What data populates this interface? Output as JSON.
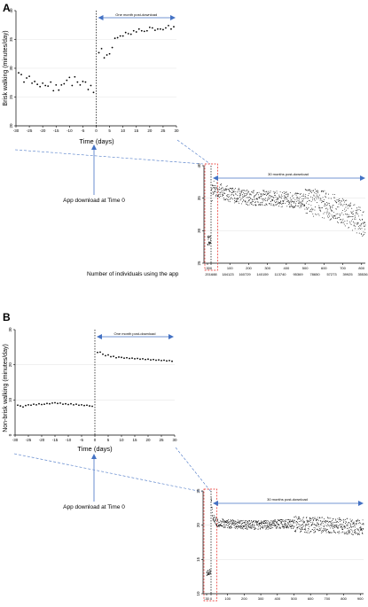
{
  "panels": {
    "A": {
      "letter": "A",
      "ylabel": "Brisk walking (minutes/day)",
      "xlabel": "Time (days)",
      "download_label": "App download at Time 0",
      "users_label": "Number of individuals using the app",
      "small_post_label": "One month post-download",
      "big_post_label": "30 months post-download",
      "counts": [
        "201688",
        "184123",
        "160729",
        "140159",
        "113740",
        "95369",
        "78650",
        "57273",
        "39925",
        "35536"
      ]
    },
    "B": {
      "letter": "B",
      "ylabel": "Non-brisk walking (minutes/day)",
      "xlabel": "Time (days)",
      "download_label": "App download at Time 0",
      "small_post_label": "One month post-download",
      "big_post_label": "30 months post-download"
    }
  },
  "colors": {
    "arrow": "#4472c4",
    "dash": "#4472c4",
    "zoom_box": "#e8231e",
    "points": "#000000",
    "grid": "#e6e6e6"
  },
  "chart_data": [
    {
      "id": "A-small",
      "type": "scatter",
      "xlabel": "Time (days)",
      "ylabel": "Brisk walking (minutes/day)",
      "xlim": [
        -30,
        30
      ],
      "ylim": [
        20,
        40
      ],
      "xticks": [
        -30,
        -25,
        -20,
        -15,
        -10,
        -5,
        0,
        5,
        10,
        15,
        20,
        25,
        30
      ],
      "yticks": [
        20,
        25,
        30,
        35,
        40
      ],
      "annotation": "One month post-download",
      "points": [
        [
          -29,
          29.2
        ],
        [
          -28,
          28.9
        ],
        [
          -27,
          27.6
        ],
        [
          -26,
          28.3
        ],
        [
          -25,
          28.6
        ],
        [
          -24,
          27.4
        ],
        [
          -23,
          27.7
        ],
        [
          -22,
          27.2
        ],
        [
          -21,
          26.8
        ],
        [
          -20,
          27.4
        ],
        [
          -19,
          27.0
        ],
        [
          -18,
          26.9
        ],
        [
          -17,
          27.6
        ],
        [
          -16,
          26.1
        ],
        [
          -15,
          27.1
        ],
        [
          -14,
          26.2
        ],
        [
          -13,
          27.1
        ],
        [
          -12,
          27.3
        ],
        [
          -11,
          27.9
        ],
        [
          -10,
          28.4
        ],
        [
          -9,
          27.0
        ],
        [
          -8,
          28.5
        ],
        [
          -7,
          27.6
        ],
        [
          -6,
          27.1
        ],
        [
          -5,
          27.7
        ],
        [
          -4,
          27.6
        ],
        [
          -3,
          26.3
        ],
        [
          -2,
          27.0
        ],
        [
          -1,
          25.8
        ],
        [
          1,
          32.7
        ],
        [
          2,
          33.4
        ],
        [
          3,
          31.8
        ],
        [
          4,
          32.3
        ],
        [
          5,
          32.5
        ],
        [
          6,
          33.6
        ],
        [
          7,
          35.2
        ],
        [
          8,
          35.3
        ],
        [
          9,
          35.6
        ],
        [
          10,
          35.6
        ],
        [
          11,
          36.2
        ],
        [
          12,
          36.0
        ],
        [
          13,
          35.9
        ],
        [
          14,
          36.5
        ],
        [
          15,
          36.3
        ],
        [
          16,
          36.8
        ],
        [
          17,
          36.5
        ],
        [
          18,
          36.4
        ],
        [
          19,
          36.5
        ],
        [
          20,
          37.1
        ],
        [
          21,
          37.0
        ],
        [
          22,
          36.6
        ],
        [
          23,
          36.8
        ],
        [
          24,
          36.8
        ],
        [
          25,
          36.7
        ],
        [
          26,
          37.0
        ],
        [
          27,
          37.4
        ],
        [
          28,
          36.8
        ],
        [
          29,
          37.2
        ]
      ]
    },
    {
      "id": "A-large",
      "type": "scatter",
      "ylim": [
        25,
        40
      ],
      "yticks": [
        25,
        30,
        35,
        40
      ],
      "xticks": [
        -30,
        0,
        100,
        200,
        300,
        400,
        500,
        600,
        700,
        800
      ],
      "annotation": "30 months post-download",
      "trend": [
        [
          -30,
          28.5
        ],
        [
          -1,
          28.5
        ],
        [
          0,
          34.5
        ],
        [
          10,
          36.5
        ],
        [
          40,
          36.2
        ],
        [
          100,
          35.6
        ],
        [
          200,
          35.1
        ],
        [
          300,
          35.0
        ],
        [
          400,
          34.8
        ],
        [
          500,
          34.5
        ],
        [
          600,
          34.1
        ],
        [
          700,
          33.1
        ],
        [
          800,
          31.3
        ]
      ]
    },
    {
      "id": "B-small",
      "type": "scatter",
      "xlabel": "Time (days)",
      "ylabel": "Non-brisk walking (minutes/day)",
      "xlim": [
        -30,
        30
      ],
      "ylim": [
        0,
        30
      ],
      "xticks": [
        -30,
        -25,
        -20,
        -15,
        -10,
        -5,
        0,
        5,
        10,
        15,
        20,
        25,
        30
      ],
      "yticks": [
        0,
        10,
        20,
        30
      ],
      "annotation": "One month post-download",
      "points": [
        [
          -29,
          8.5
        ],
        [
          -28,
          8.3
        ],
        [
          -27,
          8.0
        ],
        [
          -26,
          8.4
        ],
        [
          -25,
          8.6
        ],
        [
          -24,
          8.5
        ],
        [
          -23,
          8.8
        ],
        [
          -22,
          8.6
        ],
        [
          -21,
          8.9
        ],
        [
          -20,
          8.7
        ],
        [
          -19,
          8.8
        ],
        [
          -18,
          9.0
        ],
        [
          -17,
          8.9
        ],
        [
          -16,
          9.1
        ],
        [
          -15,
          9.2
        ],
        [
          -14,
          9.0
        ],
        [
          -13,
          9.1
        ],
        [
          -12,
          8.8
        ],
        [
          -11,
          8.9
        ],
        [
          -10,
          8.7
        ],
        [
          -9,
          8.9
        ],
        [
          -8,
          8.6
        ],
        [
          -7,
          8.8
        ],
        [
          -6,
          8.5
        ],
        [
          -5,
          8.6
        ],
        [
          -4,
          8.4
        ],
        [
          -3,
          8.5
        ],
        [
          -2,
          8.3
        ],
        [
          -1,
          8.2
        ],
        [
          1,
          23.5
        ],
        [
          2,
          23.6
        ],
        [
          3,
          23.0
        ],
        [
          4,
          22.6
        ],
        [
          5,
          22.8
        ],
        [
          6,
          22.3
        ],
        [
          7,
          22.4
        ],
        [
          8,
          22.0
        ],
        [
          9,
          22.2
        ],
        [
          10,
          22.1
        ],
        [
          11,
          21.9
        ],
        [
          12,
          22.0
        ],
        [
          13,
          21.8
        ],
        [
          14,
          21.9
        ],
        [
          15,
          21.7
        ],
        [
          16,
          21.8
        ],
        [
          17,
          21.6
        ],
        [
          18,
          21.7
        ],
        [
          19,
          21.5
        ],
        [
          20,
          21.6
        ],
        [
          21,
          21.4
        ],
        [
          22,
          21.5
        ],
        [
          23,
          21.3
        ],
        [
          24,
          21.4
        ],
        [
          25,
          21.2
        ],
        [
          26,
          21.3
        ],
        [
          27,
          21.1
        ],
        [
          28,
          21.2
        ],
        [
          29,
          21.0
        ]
      ]
    },
    {
      "id": "B-large",
      "type": "scatter",
      "ylim": [
        10,
        25
      ],
      "yticks": [
        10,
        15,
        20,
        25
      ],
      "xticks": [
        -30,
        0,
        100,
        200,
        300,
        400,
        500,
        600,
        700,
        800,
        900
      ],
      "annotation": "30 months post-download",
      "trend": [
        [
          -30,
          13.0
        ],
        [
          -1,
          13.2
        ],
        [
          0,
          24.0
        ],
        [
          10,
          21.0
        ],
        [
          40,
          20.4
        ],
        [
          150,
          20.1
        ],
        [
          300,
          20.0
        ],
        [
          450,
          20.2
        ],
        [
          600,
          20.0
        ],
        [
          750,
          20.0
        ],
        [
          900,
          19.7
        ]
      ]
    }
  ]
}
